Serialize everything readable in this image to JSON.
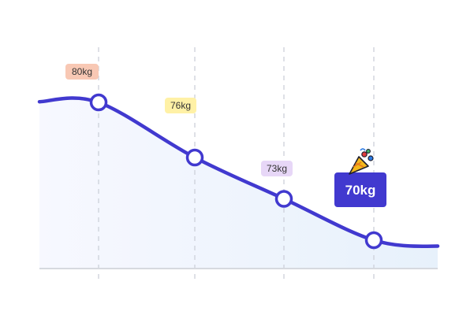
{
  "chart_data": {
    "type": "line",
    "x": [
      1,
      2,
      3,
      4
    ],
    "series": [
      {
        "values": [
          80,
          76,
          73,
          70
        ]
      }
    ],
    "labels": [
      "80kg",
      "76kg",
      "73kg",
      "70kg"
    ],
    "ylim": [
      68,
      82
    ],
    "grid": "vertical-dashed",
    "colors": {
      "line": "#4139cf",
      "fill_start": "#f7f8ff",
      "fill_end": "#e7f1fb",
      "tag_backgrounds": [
        "#f8c8b4",
        "#fff1a6",
        "#e7d7f7"
      ],
      "final_badge": "#4139cf",
      "grid": "#cfd3dc",
      "axis": "#d6d9df"
    },
    "celebration_icon": "party-popper-icon"
  }
}
